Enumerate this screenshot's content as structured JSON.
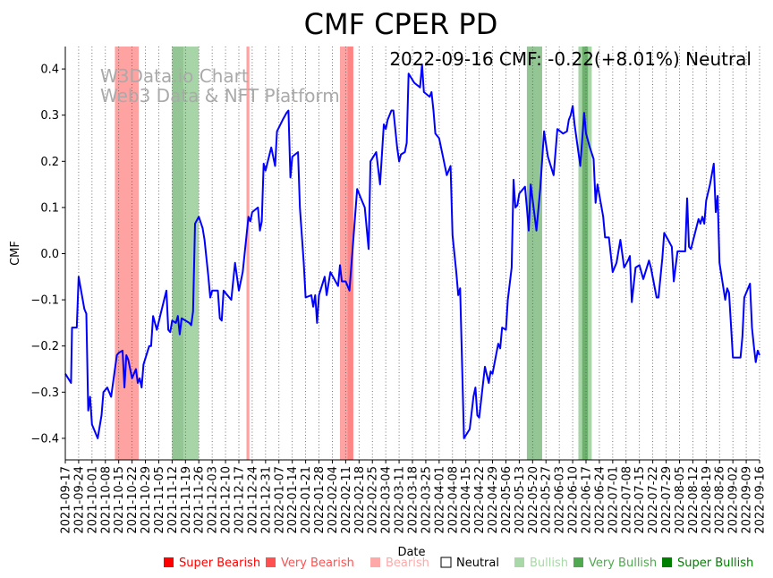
{
  "chart_data": {
    "type": "line",
    "title": "CMF CPER PD",
    "xlabel": "Date",
    "ylabel": "CMF",
    "annotation": "2022-09-16 CMF: -0.22(+8.01%) Neutral",
    "watermark": [
      "W3Data.io Chart",
      "Web3 Data & NFT Platform"
    ],
    "x_start": "2021-09-17",
    "x_unit": "days since x_start",
    "xlim": [
      0,
      364
    ],
    "ylim": [
      -0.445,
      0.45
    ],
    "yticks": [
      -0.4,
      -0.3,
      -0.2,
      -0.1,
      0.0,
      0.1,
      0.2,
      0.3,
      0.4
    ],
    "ytick_labels": [
      "−0.4",
      "−0.3",
      "−0.2",
      "−0.1",
      "0.0",
      "0.1",
      "0.2",
      "0.3",
      "0.4"
    ],
    "xtick_labels": [
      "2021-09-17",
      "2021-09-24",
      "2021-10-01",
      "2021-10-08",
      "2021-10-15",
      "2021-10-22",
      "2021-10-29",
      "2021-11-05",
      "2021-11-12",
      "2021-11-19",
      "2021-11-26",
      "2021-12-03",
      "2021-12-10",
      "2021-12-17",
      "2021-12-24",
      "2021-12-31",
      "2022-01-07",
      "2022-01-14",
      "2022-01-21",
      "2022-01-28",
      "2022-02-04",
      "2022-02-11",
      "2022-02-18",
      "2022-02-25",
      "2022-03-04",
      "2022-03-11",
      "2022-03-18",
      "2022-03-25",
      "2022-04-01",
      "2022-04-08",
      "2022-04-15",
      "2022-04-22",
      "2022-04-29",
      "2022-05-06",
      "2022-05-13",
      "2022-05-20",
      "2022-05-27",
      "2022-06-03",
      "2022-06-10",
      "2022-06-17",
      "2022-06-24",
      "2022-07-01",
      "2022-07-08",
      "2022-07-15",
      "2022-07-22",
      "2022-07-29",
      "2022-08-05",
      "2022-08-12",
      "2022-08-19",
      "2022-08-26",
      "2022-09-02",
      "2022-09-09",
      "2022-09-16"
    ],
    "grid": "vertical dotted",
    "line_color": "#0000ff",
    "series": [
      {
        "name": "CMF",
        "points": [
          [
            0,
            -0.26
          ],
          [
            3,
            -0.28
          ],
          [
            3.5,
            -0.16
          ],
          [
            6,
            -0.16
          ],
          [
            7,
            -0.05
          ],
          [
            10,
            -0.12
          ],
          [
            11,
            -0.13
          ],
          [
            12,
            -0.34
          ],
          [
            13,
            -0.31
          ],
          [
            14,
            -0.37
          ],
          [
            17,
            -0.4
          ],
          [
            19,
            -0.35
          ],
          [
            20,
            -0.3
          ],
          [
            22,
            -0.29
          ],
          [
            24,
            -0.31
          ],
          [
            27,
            -0.22
          ],
          [
            28,
            -0.215
          ],
          [
            30,
            -0.21
          ],
          [
            31,
            -0.29
          ],
          [
            32,
            -0.22
          ],
          [
            33,
            -0.23
          ],
          [
            35,
            -0.27
          ],
          [
            37,
            -0.25
          ],
          [
            38,
            -0.28
          ],
          [
            39,
            -0.27
          ],
          [
            40,
            -0.29
          ],
          [
            41,
            -0.24
          ],
          [
            44,
            -0.2
          ],
          [
            45,
            -0.2
          ],
          [
            46,
            -0.135
          ],
          [
            48,
            -0.165
          ],
          [
            50,
            -0.13
          ],
          [
            53,
            -0.08
          ],
          [
            54,
            -0.165
          ],
          [
            55,
            -0.17
          ],
          [
            56,
            -0.145
          ],
          [
            58,
            -0.15
          ],
          [
            59,
            -0.135
          ],
          [
            60,
            -0.175
          ],
          [
            61,
            -0.14
          ],
          [
            65,
            -0.15
          ],
          [
            66,
            -0.155
          ],
          [
            67,
            -0.125
          ],
          [
            68,
            0.065
          ],
          [
            70,
            0.08
          ],
          [
            72,
            0.055
          ],
          [
            73,
            0.03
          ],
          [
            75,
            -0.05
          ],
          [
            76,
            -0.095
          ],
          [
            77,
            -0.08
          ],
          [
            80,
            -0.08
          ],
          [
            81,
            -0.14
          ],
          [
            82,
            -0.145
          ],
          [
            83,
            -0.08
          ],
          [
            87,
            -0.1
          ],
          [
            88,
            -0.06
          ],
          [
            89,
            -0.02
          ],
          [
            91,
            -0.08
          ],
          [
            93,
            -0.04
          ],
          [
            96,
            0.08
          ],
          [
            97,
            0.07
          ],
          [
            98,
            0.09
          ],
          [
            101,
            0.1
          ],
          [
            102,
            0.05
          ],
          [
            103,
            0.07
          ],
          [
            104,
            0.195
          ],
          [
            105,
            0.18
          ],
          [
            108,
            0.23
          ],
          [
            110,
            0.19
          ],
          [
            111,
            0.265
          ],
          [
            114,
            0.29
          ],
          [
            116,
            0.305
          ],
          [
            117,
            0.31
          ],
          [
            118,
            0.165
          ],
          [
            119,
            0.21
          ],
          [
            122,
            0.22
          ],
          [
            123,
            0.1
          ],
          [
            125,
            -0.02
          ],
          [
            126,
            -0.095
          ],
          [
            129,
            -0.09
          ],
          [
            130,
            -0.115
          ],
          [
            131,
            -0.09
          ],
          [
            132,
            -0.15
          ],
          [
            133,
            -0.09
          ],
          [
            136,
            -0.05
          ],
          [
            137,
            -0.09
          ],
          [
            139,
            -0.04
          ],
          [
            143,
            -0.07
          ],
          [
            144,
            -0.025
          ],
          [
            145,
            -0.06
          ],
          [
            147,
            -0.06
          ],
          [
            149,
            -0.08
          ],
          [
            151,
            0.03
          ],
          [
            153,
            0.14
          ],
          [
            155,
            0.12
          ],
          [
            157,
            0.1
          ],
          [
            159,
            0.01
          ],
          [
            160,
            0.2
          ],
          [
            163,
            0.22
          ],
          [
            165,
            0.15
          ],
          [
            167,
            0.28
          ],
          [
            168,
            0.27
          ],
          [
            169,
            0.29
          ],
          [
            171,
            0.31
          ],
          [
            172,
            0.31
          ],
          [
            174,
            0.23
          ],
          [
            175,
            0.2
          ],
          [
            176,
            0.215
          ],
          [
            178,
            0.22
          ],
          [
            179,
            0.24
          ],
          [
            180,
            0.39
          ],
          [
            183,
            0.37
          ],
          [
            186,
            0.36
          ],
          [
            187,
            0.41
          ],
          [
            188,
            0.35
          ],
          [
            191,
            0.34
          ],
          [
            192,
            0.35
          ],
          [
            193,
            0.31
          ],
          [
            194,
            0.26
          ],
          [
            196,
            0.25
          ],
          [
            198,
            0.21
          ],
          [
            200,
            0.17
          ],
          [
            202,
            0.19
          ],
          [
            203,
            0.04
          ],
          [
            205,
            -0.04
          ],
          [
            206,
            -0.09
          ],
          [
            207,
            -0.075
          ],
          [
            209,
            -0.4
          ],
          [
            212,
            -0.38
          ],
          [
            214,
            -0.31
          ],
          [
            215,
            -0.29
          ],
          [
            216,
            -0.35
          ],
          [
            217,
            -0.355
          ],
          [
            220,
            -0.245
          ],
          [
            222,
            -0.28
          ],
          [
            223,
            -0.255
          ],
          [
            224,
            -0.26
          ],
          [
            227,
            -0.195
          ],
          [
            228,
            -0.205
          ],
          [
            229,
            -0.16
          ],
          [
            231,
            -0.165
          ],
          [
            232,
            -0.1
          ],
          [
            234,
            -0.03
          ],
          [
            235,
            0.16
          ],
          [
            236,
            0.1
          ],
          [
            237,
            0.105
          ],
          [
            238,
            0.13
          ],
          [
            241,
            0.145
          ],
          [
            242,
            0.1
          ],
          [
            243,
            0.05
          ],
          [
            244,
            0.15
          ],
          [
            247,
            0.05
          ],
          [
            249,
            0.14
          ],
          [
            251,
            0.265
          ],
          [
            253,
            0.21
          ],
          [
            256,
            0.17
          ],
          [
            258,
            0.27
          ],
          [
            261,
            0.26
          ],
          [
            263,
            0.265
          ],
          [
            264,
            0.29
          ],
          [
            265,
            0.3
          ],
          [
            266,
            0.32
          ],
          [
            267,
            0.28
          ],
          [
            270,
            0.19
          ],
          [
            272,
            0.305
          ],
          [
            273,
            0.26
          ],
          [
            275,
            0.23
          ],
          [
            277,
            0.205
          ],
          [
            278,
            0.11
          ],
          [
            279,
            0.15
          ],
          [
            282,
            0.08
          ],
          [
            283,
            0.035
          ],
          [
            285,
            0.035
          ],
          [
            287,
            -0.04
          ],
          [
            289,
            -0.02
          ],
          [
            291,
            0.03
          ],
          [
            293,
            -0.03
          ],
          [
            295,
            -0.015
          ],
          [
            296,
            -0.005
          ],
          [
            297,
            -0.105
          ],
          [
            299,
            -0.03
          ],
          [
            301,
            -0.025
          ],
          [
            303,
            -0.055
          ],
          [
            306,
            -0.015
          ],
          [
            307,
            -0.03
          ],
          [
            310,
            -0.095
          ],
          [
            311,
            -0.095
          ],
          [
            313,
            -0.01
          ],
          [
            314,
            0.045
          ],
          [
            316,
            0.03
          ],
          [
            318,
            0.015
          ],
          [
            319,
            -0.06
          ],
          [
            321,
            0.005
          ],
          [
            325,
            0.005
          ],
          [
            326,
            0.12
          ],
          [
            327,
            0.015
          ],
          [
            328,
            0.01
          ],
          [
            332,
            0.075
          ],
          [
            333,
            0.065
          ],
          [
            334,
            0.08
          ],
          [
            335,
            0.065
          ],
          [
            336,
            0.115
          ],
          [
            338,
            0.15
          ],
          [
            340,
            0.195
          ],
          [
            341,
            0.09
          ],
          [
            342,
            0.125
          ],
          [
            343,
            -0.02
          ],
          [
            346,
            -0.1
          ],
          [
            347,
            -0.075
          ],
          [
            348,
            -0.085
          ],
          [
            350,
            -0.225
          ],
          [
            353,
            -0.225
          ],
          [
            354,
            -0.225
          ],
          [
            355,
            -0.18
          ],
          [
            356,
            -0.095
          ],
          [
            359,
            -0.065
          ],
          [
            360,
            -0.16
          ],
          [
            361,
            -0.2
          ],
          [
            362,
            -0.235
          ],
          [
            363,
            -0.21
          ],
          [
            364,
            -0.22
          ]
        ]
      }
    ],
    "regions": [
      {
        "from": 26,
        "to": 38.5,
        "signal": "Bearish"
      },
      {
        "from": 56,
        "to": 62,
        "signal": "Very Bullish"
      },
      {
        "from": 62,
        "to": 70,
        "signal": "Bullish"
      },
      {
        "from": 95,
        "to": 96.5,
        "signal": "Bearish"
      },
      {
        "from": 144,
        "to": 148,
        "signal": "Bearish"
      },
      {
        "from": 148,
        "to": 151,
        "signal": "Very Bearish"
      },
      {
        "from": 242,
        "to": 250,
        "signal": "Very Bullish"
      },
      {
        "from": 269,
        "to": 276,
        "signal": "Bullish"
      },
      {
        "from": 271,
        "to": 274,
        "signal": "Very Bullish"
      }
    ],
    "legend_placement": "bottom",
    "legend": [
      {
        "label": "Super Bearish",
        "color": "#ff0000"
      },
      {
        "label": "Very Bearish",
        "color": "#ff5050"
      },
      {
        "label": "Bearish",
        "color": "#ffa8a8"
      },
      {
        "label": "Neutral",
        "color": "#ffffff"
      },
      {
        "label": "Bullish",
        "color": "#a8d8a8"
      },
      {
        "label": "Very Bullish",
        "color": "#50a850"
      },
      {
        "label": "Super Bullish",
        "color": "#008000"
      }
    ],
    "region_colors": {
      "Super Bearish": "rgba(255,0,0,0.6)",
      "Very Bearish": "rgba(255,80,80,0.7)",
      "Bearish": "rgba(255,100,100,0.6)",
      "Bullish": "rgba(120,190,120,0.65)",
      "Very Bullish": "rgba(60,150,60,0.55)",
      "Super Bullish": "rgba(0,128,0,0.6)"
    }
  }
}
